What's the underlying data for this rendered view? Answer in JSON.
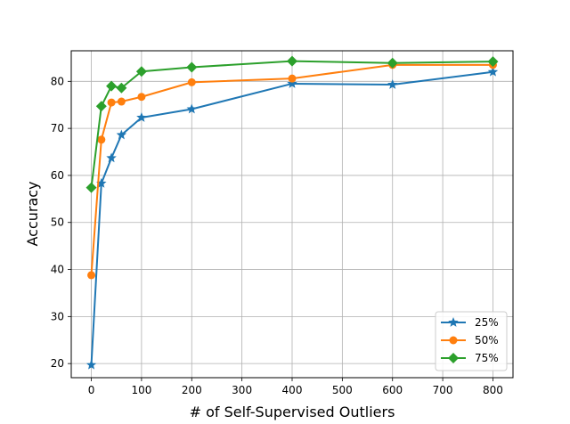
{
  "chart_data": {
    "type": "line",
    "title": "",
    "xlabel": "# of Self-Supervised Outliers",
    "ylabel": "Accuracy",
    "xlim": [
      -40,
      840
    ],
    "ylim": [
      17,
      86.5
    ],
    "xticks": [
      0,
      100,
      200,
      300,
      400,
      500,
      600,
      700,
      800
    ],
    "yticks": [
      20,
      30,
      40,
      50,
      60,
      70,
      80
    ],
    "grid": true,
    "legend_position": "lower-right",
    "x": [
      0,
      20,
      40,
      60,
      100,
      200,
      400,
      600,
      800
    ],
    "series": [
      {
        "name": "25%",
        "color": "#1f77b4",
        "marker": "star",
        "values": [
          19.7,
          58.3,
          63.7,
          68.6,
          72.3,
          74.1,
          79.5,
          79.3,
          82.0
        ]
      },
      {
        "name": "50%",
        "color": "#ff7f0e",
        "marker": "circle",
        "values": [
          38.8,
          67.6,
          75.5,
          75.7,
          76.7,
          79.8,
          80.6,
          83.5,
          83.5
        ]
      },
      {
        "name": "75%",
        "color": "#2ca02c",
        "marker": "diamond",
        "values": [
          57.4,
          74.7,
          79.0,
          78.6,
          82.1,
          83.0,
          84.3,
          83.9,
          84.2
        ]
      }
    ]
  }
}
